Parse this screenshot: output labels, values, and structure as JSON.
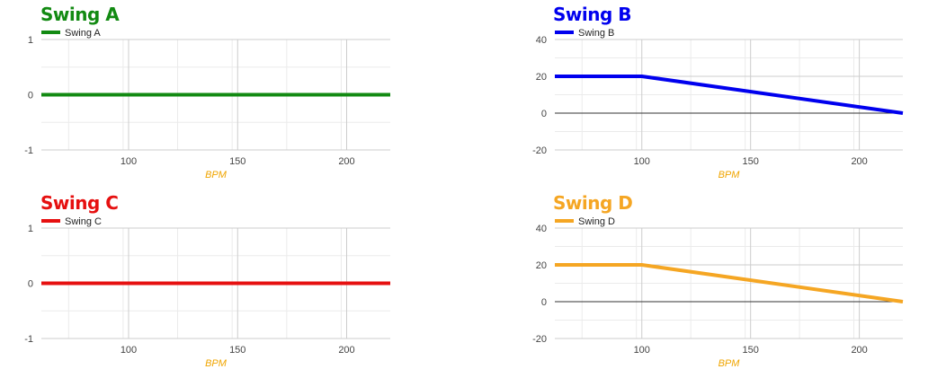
{
  "chart_data": [
    {
      "type": "line",
      "title": "Swing A",
      "color": "#128a12",
      "xlabel": "BPM",
      "xlabel_color": "#f0a500",
      "xlim": [
        60,
        220
      ],
      "ylim": [
        -1,
        1
      ],
      "x_ticks": [
        100,
        150,
        200
      ],
      "y_ticks": [
        1,
        0,
        -1
      ],
      "legend_position": "top-left",
      "series": [
        {
          "name": "Swing A",
          "x": [
            60,
            220
          ],
          "y": [
            0,
            0
          ]
        }
      ]
    },
    {
      "type": "line",
      "title": "Swing B",
      "color": "#0000ee",
      "xlabel": "BPM",
      "xlabel_color": "#f0a500",
      "xlim": [
        60,
        220
      ],
      "ylim": [
        -20,
        40
      ],
      "x_ticks": [
        100,
        150,
        200
      ],
      "y_ticks": [
        40,
        20,
        0,
        -20
      ],
      "legend_position": "top-left",
      "series": [
        {
          "name": "Swing B",
          "x": [
            60,
            100,
            220
          ],
          "y": [
            20,
            20,
            0
          ]
        }
      ]
    },
    {
      "type": "line",
      "title": "Swing C",
      "color": "#e61010",
      "xlabel": "BPM",
      "xlabel_color": "#f0a500",
      "xlim": [
        60,
        220
      ],
      "ylim": [
        -1,
        1
      ],
      "x_ticks": [
        100,
        150,
        200
      ],
      "y_ticks": [
        1,
        0,
        -1
      ],
      "legend_position": "top-left",
      "series": [
        {
          "name": "Swing C",
          "x": [
            60,
            220
          ],
          "y": [
            0,
            0
          ]
        }
      ]
    },
    {
      "type": "line",
      "title": "Swing D",
      "color": "#f5a623",
      "xlabel": "BPM",
      "xlabel_color": "#f0a500",
      "xlim": [
        60,
        220
      ],
      "ylim": [
        -20,
        40
      ],
      "x_ticks": [
        100,
        150,
        200
      ],
      "y_ticks": [
        40,
        20,
        0,
        -20
      ],
      "legend_position": "top-left",
      "series": [
        {
          "name": "Swing D",
          "x": [
            60,
            100,
            220
          ],
          "y": [
            20,
            20,
            0
          ]
        }
      ]
    }
  ]
}
